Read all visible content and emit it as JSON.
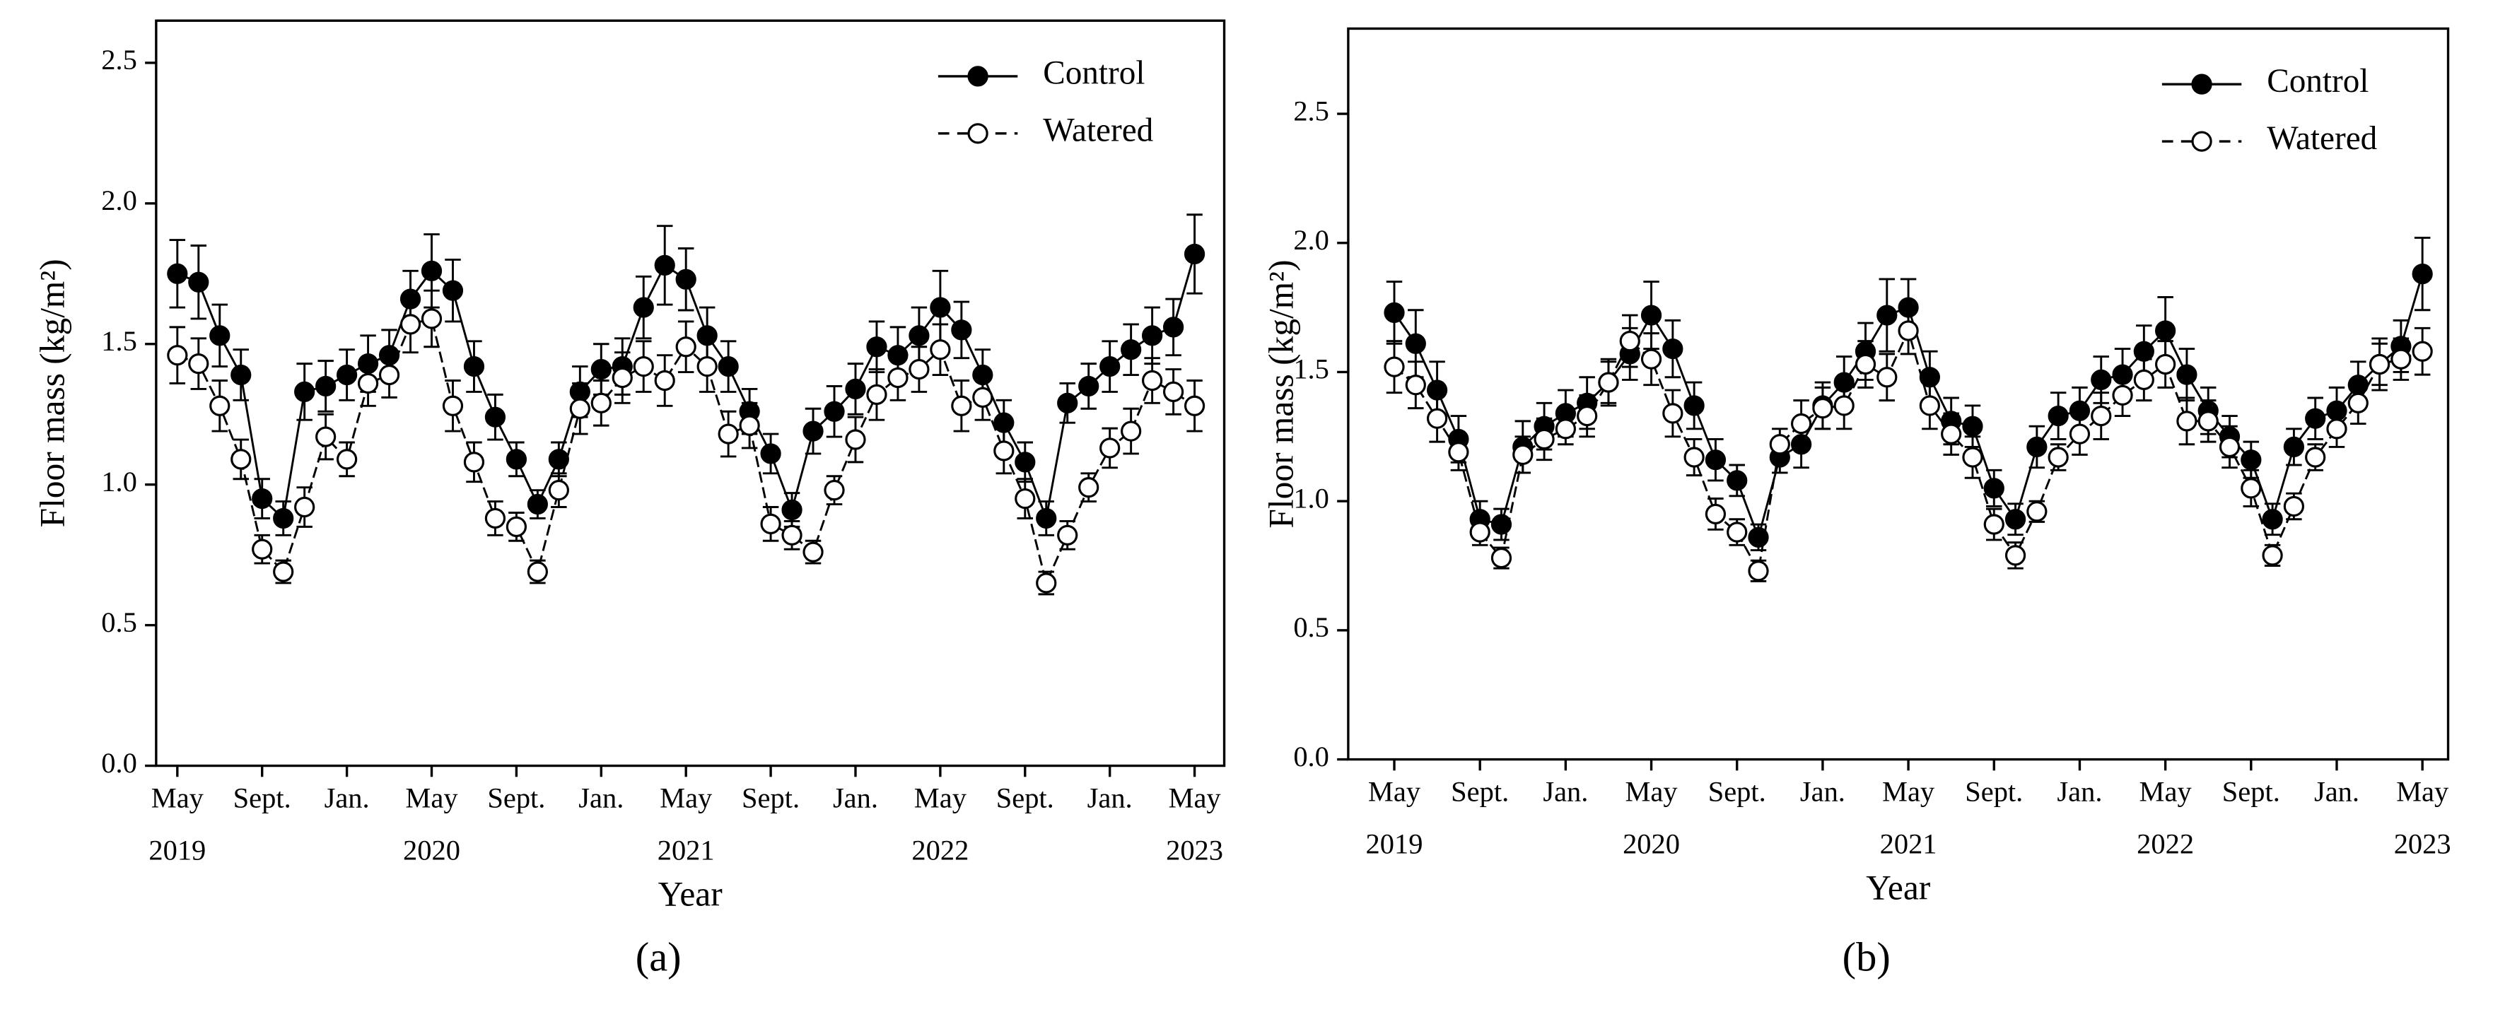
{
  "chart_data": [
    {
      "type": "line",
      "panel_label": "(a)",
      "xlabel": "Year",
      "ylabel": "Floor mass (kg/m²)",
      "legend": "upper right",
      "x": [
        0,
        1,
        2,
        3,
        4,
        5,
        6,
        7,
        8,
        9,
        10,
        11,
        12,
        13,
        14,
        15,
        16,
        17,
        18,
        19,
        20,
        21,
        22,
        23,
        24,
        25,
        26,
        27,
        28,
        29,
        30,
        31,
        32,
        33,
        34,
        35,
        36,
        37,
        38,
        39,
        40,
        41,
        42,
        43,
        44,
        45,
        46,
        47,
        48
      ],
      "xlim": [
        -1,
        49.4
      ],
      "xticks": [
        {
          "value": 0,
          "label": "May"
        },
        {
          "value": 4,
          "label": "Sept."
        },
        {
          "value": 8,
          "label": "Jan."
        },
        {
          "value": 12,
          "label": "May"
        },
        {
          "value": 16,
          "label": "Sept."
        },
        {
          "value": 20,
          "label": "Jan."
        },
        {
          "value": 24,
          "label": "May"
        },
        {
          "value": 28,
          "label": "Sept."
        },
        {
          "value": 32,
          "label": "Jan."
        },
        {
          "value": 36,
          "label": "May"
        },
        {
          "value": 40,
          "label": "Sept."
        },
        {
          "value": 44,
          "label": "Jan."
        },
        {
          "value": 48,
          "label": "May"
        }
      ],
      "year_ticks": [
        {
          "value": 0,
          "label": "2019"
        },
        {
          "value": 12,
          "label": "2020"
        },
        {
          "value": 24,
          "label": "2021"
        },
        {
          "value": 36,
          "label": "2022"
        },
        {
          "value": 48,
          "label": "2023"
        }
      ],
      "ylim": [
        0,
        2.65
      ],
      "yticks": [
        {
          "value": 0,
          "label": "0.0"
        },
        0.5,
        {
          "value": 1,
          "label": "1.0"
        },
        1.5,
        {
          "value": 2,
          "label": "2.0"
        },
        2.5
      ],
      "series": [
        {
          "name": "Control",
          "color": "#000000",
          "marker_fill": "#000000",
          "dashed": false,
          "values": [
            1.75,
            1.72,
            1.53,
            1.39,
            0.95,
            0.88,
            1.33,
            1.35,
            1.39,
            1.43,
            1.46,
            1.66,
            1.76,
            1.69,
            1.42,
            1.24,
            1.09,
            0.93,
            1.09,
            1.33,
            1.41,
            1.42,
            1.63,
            1.78,
            1.73,
            1.53,
            1.42,
            1.26,
            1.11,
            0.91,
            1.19,
            1.26,
            1.34,
            1.49,
            1.46,
            1.53,
            1.63,
            1.55,
            1.39,
            1.22,
            1.08,
            0.88,
            1.29,
            1.35,
            1.42,
            1.48,
            1.53,
            1.56,
            1.82
          ],
          "errors": [
            0.12,
            0.13,
            0.11,
            0.09,
            0.07,
            0.06,
            0.1,
            0.09,
            0.09,
            0.1,
            0.09,
            0.1,
            0.13,
            0.11,
            0.09,
            0.08,
            0.06,
            0.05,
            0.06,
            0.09,
            0.09,
            0.1,
            0.11,
            0.14,
            0.11,
            0.1,
            0.09,
            0.08,
            0.07,
            0.06,
            0.08,
            0.09,
            0.09,
            0.09,
            0.1,
            0.1,
            0.13,
            0.1,
            0.09,
            0.08,
            0.07,
            0.06,
            0.07,
            0.08,
            0.09,
            0.09,
            0.1,
            0.1,
            0.14
          ]
        },
        {
          "name": "Watered",
          "color": "#000000",
          "marker_fill": "#ffffff",
          "dashed": true,
          "values": [
            1.46,
            1.43,
            1.28,
            1.09,
            0.77,
            0.69,
            0.92,
            1.17,
            1.09,
            1.36,
            1.39,
            1.57,
            1.59,
            1.28,
            1.08,
            0.88,
            0.85,
            0.69,
            0.98,
            1.27,
            1.29,
            1.38,
            1.42,
            1.37,
            1.49,
            1.42,
            1.18,
            1.21,
            0.86,
            0.82,
            0.76,
            0.98,
            1.16,
            1.32,
            1.38,
            1.41,
            1.48,
            1.28,
            1.31,
            1.12,
            0.95,
            0.65,
            0.82,
            0.99,
            1.13,
            1.19,
            1.37,
            1.33,
            1.28
          ],
          "errors": [
            0.1,
            0.09,
            0.09,
            0.07,
            0.05,
            0.04,
            0.07,
            0.08,
            0.06,
            0.08,
            0.08,
            0.1,
            0.1,
            0.09,
            0.07,
            0.06,
            0.05,
            0.04,
            0.06,
            0.09,
            0.08,
            0.09,
            0.09,
            0.09,
            0.09,
            0.09,
            0.08,
            0.08,
            0.06,
            0.05,
            0.04,
            0.05,
            0.08,
            0.09,
            0.08,
            0.08,
            0.09,
            0.09,
            0.08,
            0.08,
            0.07,
            0.04,
            0.05,
            0.05,
            0.07,
            0.08,
            0.08,
            0.08,
            0.09
          ]
        }
      ]
    },
    {
      "type": "line",
      "panel_label": "(b)",
      "xlabel": "Year",
      "ylabel": "Floor mass (kg/m²)",
      "legend": "upper right",
      "x": [
        0,
        1,
        2,
        3,
        4,
        5,
        6,
        7,
        8,
        9,
        10,
        11,
        12,
        13,
        14,
        15,
        16,
        17,
        18,
        19,
        20,
        21,
        22,
        23,
        24,
        25,
        26,
        27,
        28,
        29,
        30,
        31,
        32,
        33,
        34,
        35,
        36,
        37,
        38,
        39,
        40,
        41,
        42,
        43,
        44,
        45,
        46,
        47,
        48
      ],
      "xlim": [
        -2.15,
        49.2
      ],
      "xticks": [
        {
          "value": 0,
          "label": "May"
        },
        {
          "value": 4,
          "label": "Sept."
        },
        {
          "value": 8,
          "label": "Jan."
        },
        {
          "value": 12,
          "label": "May"
        },
        {
          "value": 16,
          "label": "Sept."
        },
        {
          "value": 20,
          "label": "Jan."
        },
        {
          "value": 24,
          "label": "May"
        },
        {
          "value": 28,
          "label": "Sept."
        },
        {
          "value": 32,
          "label": "Jan."
        },
        {
          "value": 36,
          "label": "May"
        },
        {
          "value": 40,
          "label": "Sept."
        },
        {
          "value": 44,
          "label": "Jan."
        },
        {
          "value": 48,
          "label": "May"
        }
      ],
      "year_ticks": [
        {
          "value": 0,
          "label": "2019"
        },
        {
          "value": 12,
          "label": "2020"
        },
        {
          "value": 24,
          "label": "2021"
        },
        {
          "value": 36,
          "label": "2022"
        },
        {
          "value": 48,
          "label": "2023"
        }
      ],
      "ylim": [
        0,
        2.83
      ],
      "yticks": [
        {
          "value": 0,
          "label": "0.0"
        },
        0.5,
        {
          "value": 1,
          "label": "1.0"
        },
        1.5,
        {
          "value": 2,
          "label": "2.0"
        },
        2.5
      ],
      "series": [
        {
          "name": "Control",
          "color": "#000000",
          "marker_fill": "#000000",
          "dashed": false,
          "values": [
            1.73,
            1.61,
            1.43,
            1.24,
            0.93,
            0.91,
            1.21,
            1.29,
            1.34,
            1.38,
            1.46,
            1.57,
            1.72,
            1.59,
            1.37,
            1.16,
            1.08,
            0.86,
            1.17,
            1.22,
            1.37,
            1.46,
            1.58,
            1.72,
            1.75,
            1.48,
            1.31,
            1.29,
            1.05,
            0.93,
            1.21,
            1.33,
            1.35,
            1.47,
            1.49,
            1.58,
            1.66,
            1.49,
            1.35,
            1.25,
            1.16,
            0.93,
            1.21,
            1.32,
            1.35,
            1.45,
            1.53,
            1.6,
            1.88
          ],
          "errors": [
            0.12,
            0.13,
            0.11,
            0.09,
            0.07,
            0.06,
            0.1,
            0.09,
            0.09,
            0.1,
            0.09,
            0.1,
            0.13,
            0.11,
            0.09,
            0.08,
            0.06,
            0.05,
            0.06,
            0.09,
            0.09,
            0.1,
            0.11,
            0.14,
            0.11,
            0.1,
            0.09,
            0.08,
            0.07,
            0.06,
            0.08,
            0.09,
            0.09,
            0.09,
            0.1,
            0.1,
            0.13,
            0.1,
            0.09,
            0.08,
            0.07,
            0.06,
            0.07,
            0.08,
            0.09,
            0.09,
            0.1,
            0.1,
            0.14
          ]
        },
        {
          "name": "Watered",
          "color": "#000000",
          "marker_fill": "#ffffff",
          "dashed": true,
          "values": [
            1.52,
            1.45,
            1.32,
            1.19,
            0.88,
            0.78,
            1.18,
            1.24,
            1.28,
            1.33,
            1.46,
            1.62,
            1.55,
            1.34,
            1.17,
            0.95,
            0.88,
            0.73,
            1.22,
            1.3,
            1.36,
            1.37,
            1.53,
            1.48,
            1.66,
            1.37,
            1.26,
            1.17,
            0.91,
            0.79,
            0.96,
            1.17,
            1.26,
            1.33,
            1.41,
            1.47,
            1.53,
            1.31,
            1.31,
            1.21,
            1.05,
            0.79,
            0.98,
            1.17,
            1.28,
            1.38,
            1.53,
            1.55,
            1.58
          ],
          "errors": [
            0.1,
            0.09,
            0.09,
            0.07,
            0.05,
            0.04,
            0.07,
            0.08,
            0.06,
            0.08,
            0.08,
            0.1,
            0.1,
            0.09,
            0.07,
            0.06,
            0.05,
            0.04,
            0.06,
            0.09,
            0.08,
            0.09,
            0.09,
            0.09,
            0.09,
            0.09,
            0.08,
            0.08,
            0.06,
            0.05,
            0.04,
            0.05,
            0.08,
            0.09,
            0.08,
            0.08,
            0.09,
            0.09,
            0.08,
            0.08,
            0.07,
            0.04,
            0.05,
            0.05,
            0.07,
            0.08,
            0.08,
            0.08,
            0.09
          ]
        }
      ]
    }
  ]
}
